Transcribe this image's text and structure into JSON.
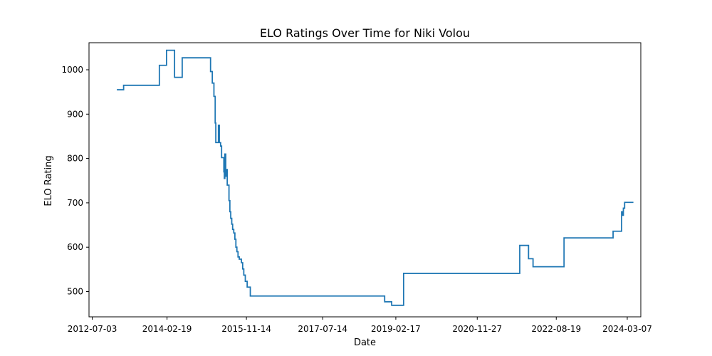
{
  "chart_data": {
    "type": "line",
    "title": "ELO Ratings Over Time for Niki Volou",
    "xlabel": "Date",
    "ylabel": "ELO Rating",
    "x_ticks": [
      "2012-07-03",
      "2014-02-19",
      "2015-11-14",
      "2017-07-14",
      "2019-02-17",
      "2020-11-27",
      "2022-08-19",
      "2024-03-07"
    ],
    "y_ticks": [
      500,
      600,
      700,
      800,
      900,
      1000
    ],
    "xlim": [
      "2012-06-07",
      "2024-06-23"
    ],
    "ylim": [
      443,
      1061
    ],
    "grid": false,
    "legend": "none",
    "colors": {
      "line": "#1f77b4",
      "axes": "#000000",
      "background": "#ffffff"
    },
    "series": [
      {
        "step": true,
        "points": [
          [
            "2013-01-15",
            955
          ],
          [
            "2013-03-10",
            965
          ],
          [
            "2013-12-15",
            965
          ],
          [
            "2013-12-20",
            1010
          ],
          [
            "2014-02-15",
            1044
          ],
          [
            "2014-04-20",
            983
          ],
          [
            "2014-06-20",
            1027
          ],
          [
            "2015-01-20",
            1027
          ],
          [
            "2015-02-01",
            996
          ],
          [
            "2015-02-15",
            970
          ],
          [
            "2015-02-28",
            940
          ],
          [
            "2015-03-10",
            880
          ],
          [
            "2015-03-15",
            836
          ],
          [
            "2015-04-05",
            875
          ],
          [
            "2015-04-12",
            836
          ],
          [
            "2015-04-22",
            828
          ],
          [
            "2015-04-30",
            802
          ],
          [
            "2015-05-18",
            770
          ],
          [
            "2015-05-22",
            755
          ],
          [
            "2015-05-26",
            810
          ],
          [
            "2015-06-02",
            760
          ],
          [
            "2015-06-08",
            775
          ],
          [
            "2015-06-14",
            740
          ],
          [
            "2015-06-28",
            705
          ],
          [
            "2015-07-05",
            680
          ],
          [
            "2015-07-12",
            665
          ],
          [
            "2015-07-20",
            652
          ],
          [
            "2015-07-27",
            640
          ],
          [
            "2015-08-05",
            632
          ],
          [
            "2015-08-14",
            618
          ],
          [
            "2015-08-22",
            600
          ],
          [
            "2015-08-30",
            590
          ],
          [
            "2015-09-08",
            578
          ],
          [
            "2015-09-18",
            573
          ],
          [
            "2015-10-05",
            565
          ],
          [
            "2015-10-15",
            551
          ],
          [
            "2015-10-24",
            537
          ],
          [
            "2015-11-05",
            523
          ],
          [
            "2015-11-20",
            510
          ],
          [
            "2015-12-15",
            490
          ],
          [
            "2018-10-20",
            490
          ],
          [
            "2018-11-20",
            477
          ],
          [
            "2019-01-15",
            469
          ],
          [
            "2019-04-20",
            541
          ],
          [
            "2021-10-15",
            541
          ],
          [
            "2021-11-01",
            604
          ],
          [
            "2022-01-10",
            574
          ],
          [
            "2022-02-15",
            556
          ],
          [
            "2022-10-10",
            556
          ],
          [
            "2022-10-20",
            621
          ],
          [
            "2023-11-05",
            621
          ],
          [
            "2023-11-15",
            636
          ],
          [
            "2024-01-15",
            636
          ],
          [
            "2024-01-22",
            680
          ],
          [
            "2024-01-30",
            672
          ],
          [
            "2024-02-05",
            688
          ],
          [
            "2024-02-15",
            701
          ],
          [
            "2024-04-25",
            701
          ]
        ]
      }
    ]
  }
}
